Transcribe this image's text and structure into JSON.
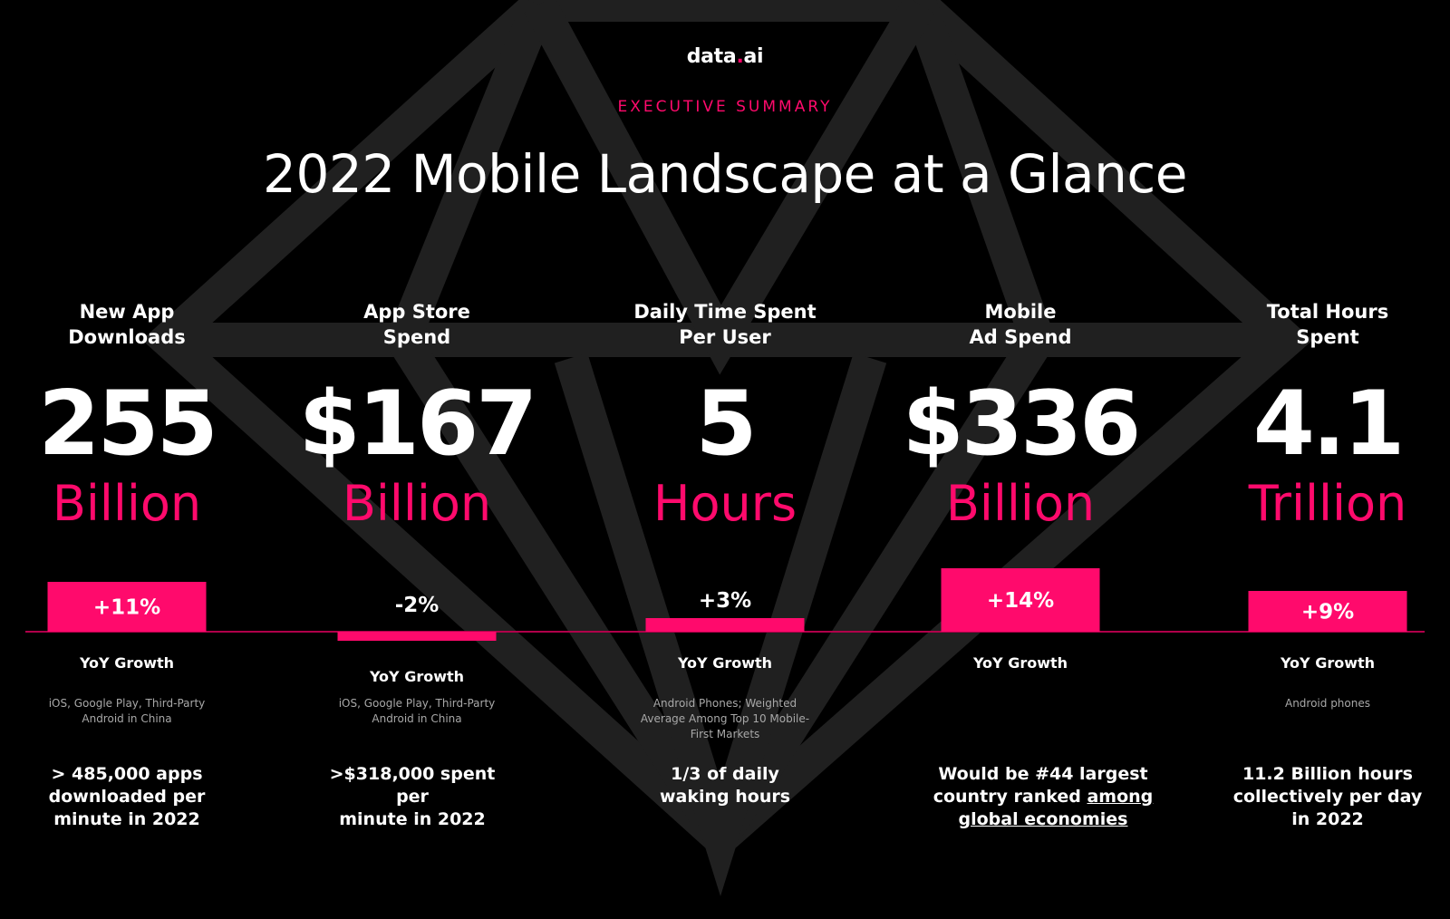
{
  "brand": {
    "name_part1": "data",
    "name_dot": ".",
    "name_part2": "ai"
  },
  "header": {
    "eyebrow": "EXECUTIVE SUMMARY",
    "title": "2022 Mobile Landscape at a Glance"
  },
  "colors": {
    "accent": "#ff0a6c",
    "baseline": "#b0004a",
    "background": "#000000",
    "text": "#ffffff"
  },
  "metrics": [
    {
      "label": "New App\nDownloads",
      "value": "255",
      "unit": "Billion",
      "growth": "+11%",
      "growth_label": "YoY Growth",
      "note": "iOS, Google Play, Third-Party\nAndroid in China",
      "fact": "> 485,000 apps\ndownloaded per\nminute in 2022"
    },
    {
      "label": "App Store\nSpend",
      "value": "$167",
      "unit": "Billion",
      "growth": "-2%",
      "growth_label": "YoY Growth",
      "note": "iOS, Google Play, Third-Party\nAndroid in China",
      "fact": ">$318,000 spent per\nminute in 2022"
    },
    {
      "label": "Daily Time Spent\nPer User",
      "value": "5",
      "unit": "Hours",
      "growth": "+3%",
      "growth_label": "YoY Growth",
      "note": "Android Phones; Weighted\nAverage Among Top 10 Mobile-\nFirst Markets",
      "fact": "1/3 of daily\nwaking hours"
    },
    {
      "label": "Mobile\nAd Spend",
      "value": "$336",
      "unit": "Billion",
      "growth": "+14%",
      "growth_label": "YoY Growth",
      "note": "",
      "fact_plain": "Would be #44 largest\ncountry ranked ",
      "fact_link": "among\nglobal economies"
    },
    {
      "label": "Total Hours\nSpent",
      "value": "4.1",
      "unit": "Trillion",
      "growth": "+9%",
      "growth_label": "YoY Growth",
      "note": "Android phones",
      "fact": "11.2 Billion hours\ncollectively per day\nin 2022"
    }
  ],
  "chart_data": {
    "type": "bar",
    "categories": [
      "New App Downloads",
      "App Store Spend",
      "Daily Time Spent Per User",
      "Mobile Ad Spend",
      "Total Hours Spent"
    ],
    "values": [
      11,
      -2,
      3,
      14,
      9
    ],
    "value_labels": [
      "+11%",
      "-2%",
      "+3%",
      "+14%",
      "+9%"
    ],
    "ylabel": "YoY Growth (%)",
    "ylim": [
      -2,
      14
    ],
    "grid": false,
    "legend": "none"
  }
}
